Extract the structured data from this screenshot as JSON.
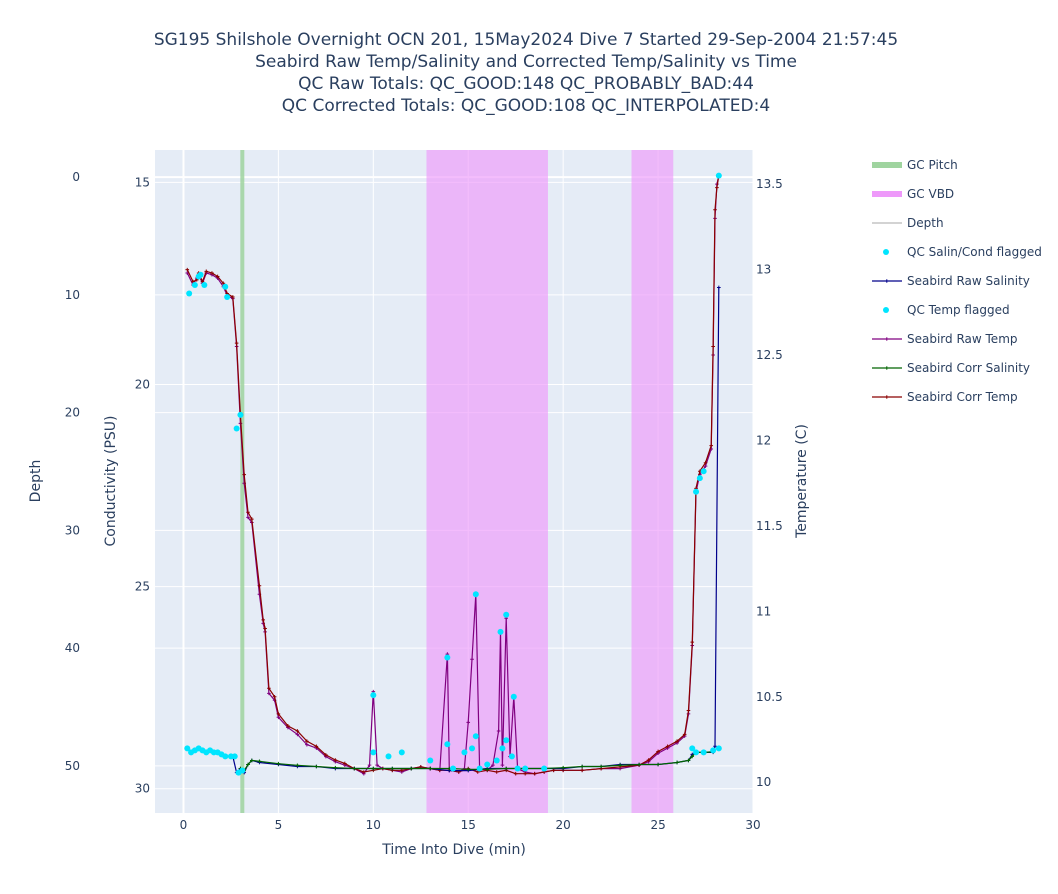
{
  "chart_data": {
    "type": "line",
    "title_lines": [
      "SG195 Shilshole Overnight OCN 201, 15May2024 Dive 7 Started 29-Sep-2004 21:57:45",
      "Seabird Raw Temp/Salinity and Corrected Temp/Salinity vs Time",
      "QC Raw Totals: QC_GOOD:148 QC_PROBABLY_BAD:44",
      "QC Corrected Totals: QC_GOOD:108 QC_INTERPOLATED:4"
    ],
    "xlabel": "Time Into Dive (min)",
    "y_depth_label": "Depth",
    "y_cond_label": "Conductivity (PSU)",
    "y_temp_label": "Temperature (C)",
    "xlim": [
      -1.5,
      30
    ],
    "x_ticks": [
      0,
      5,
      10,
      15,
      20,
      25,
      30
    ],
    "depth_axis": {
      "range": [
        54.0,
        -2.3
      ],
      "reversed": true,
      "ticks": [
        0,
        10,
        20,
        30,
        40,
        50
      ]
    },
    "cond_axis": {
      "range": [
        30.6,
        14.2
      ],
      "reversed": true,
      "ticks": [
        15,
        20,
        25,
        30
      ]
    },
    "temp_axis": {
      "range": [
        9.82,
        13.7
      ],
      "ticks": [
        10,
        10.5,
        11,
        11.5,
        12,
        12.5,
        13,
        13.5
      ]
    },
    "grid": true,
    "legend_position": "right",
    "colors": {
      "plot_bg": "#e5ecf6",
      "gc_pitch": "#9fd49f",
      "gc_vbd": "#ee99fa",
      "depth": "#d3d3d3",
      "qc_flagged": "#00e5ff",
      "raw_salinity": "#00008b",
      "raw_temp": "#800080",
      "corr_salinity": "#006400",
      "corr_temp": "#8b0000"
    },
    "gc_pitch": [
      3.1
    ],
    "gc_vbd": [
      [
        12.8,
        19.2
      ],
      [
        23.6,
        25.8
      ]
    ],
    "legend": [
      {
        "name": "GC Pitch",
        "kind": "band",
        "color_key": "gc_pitch"
      },
      {
        "name": "GC VBD",
        "kind": "band",
        "color_key": "gc_vbd"
      },
      {
        "name": "Depth",
        "kind": "line-faded",
        "color_key": "depth"
      },
      {
        "name": "QC Salin/Cond flagged",
        "kind": "dot",
        "color_key": "qc_flagged"
      },
      {
        "name": "Seabird Raw Salinity",
        "kind": "line",
        "color_key": "raw_salinity"
      },
      {
        "name": "QC Temp flagged",
        "kind": "dot",
        "color_key": "qc_flagged"
      },
      {
        "name": "Seabird Raw Temp",
        "kind": "line",
        "color_key": "raw_temp"
      },
      {
        "name": "Seabird Corr Salinity",
        "kind": "line",
        "color_key": "corr_salinity"
      },
      {
        "name": "Seabird Corr Temp",
        "kind": "line",
        "color_key": "corr_temp"
      }
    ],
    "series": [
      {
        "name": "Seabird Raw Temp",
        "axis": "temp",
        "color_key": "raw_temp",
        "points": [
          [
            0.2,
            12.98
          ],
          [
            0.5,
            12.91
          ],
          [
            0.7,
            12.95
          ],
          [
            0.8,
            12.97
          ],
          [
            1.0,
            12.92
          ],
          [
            1.2,
            12.98
          ],
          [
            1.5,
            12.97
          ],
          [
            1.8,
            12.95
          ],
          [
            2.1,
            12.9
          ],
          [
            2.3,
            12.85
          ],
          [
            2.6,
            12.83
          ],
          [
            2.8,
            12.55
          ],
          [
            3.0,
            12.1
          ],
          [
            3.2,
            11.75
          ],
          [
            3.4,
            11.55
          ],
          [
            3.6,
            11.52
          ],
          [
            4.0,
            11.1
          ],
          [
            4.2,
            10.93
          ],
          [
            4.3,
            10.88
          ],
          [
            4.5,
            10.52
          ],
          [
            4.8,
            10.48
          ],
          [
            5.0,
            10.38
          ],
          [
            5.5,
            10.32
          ],
          [
            6.0,
            10.28
          ],
          [
            6.5,
            10.22
          ],
          [
            7.0,
            10.2
          ],
          [
            7.5,
            10.15
          ],
          [
            8.0,
            10.12
          ],
          [
            8.5,
            10.1
          ],
          [
            9.0,
            10.08
          ],
          [
            9.5,
            10.05
          ],
          [
            9.8,
            10.1
          ],
          [
            10.0,
            10.53
          ],
          [
            10.2,
            10.1
          ],
          [
            10.5,
            10.08
          ],
          [
            11.0,
            10.07
          ],
          [
            11.5,
            10.06
          ],
          [
            12.0,
            10.08
          ],
          [
            12.5,
            10.09
          ],
          [
            13.0,
            10.08
          ],
          [
            13.5,
            10.07
          ],
          [
            13.9,
            10.75
          ],
          [
            14.0,
            10.07
          ],
          [
            14.5,
            10.06
          ],
          [
            14.8,
            10.08
          ],
          [
            15.0,
            10.35
          ],
          [
            15.2,
            10.72
          ],
          [
            15.4,
            11.1
          ],
          [
            15.6,
            10.08
          ],
          [
            16.0,
            10.07
          ],
          [
            16.3,
            10.1
          ],
          [
            16.6,
            10.3
          ],
          [
            16.7,
            10.88
          ],
          [
            16.8,
            10.1
          ],
          [
            17.0,
            10.96
          ],
          [
            17.2,
            10.15
          ],
          [
            17.4,
            10.5
          ],
          [
            17.6,
            10.08
          ],
          [
            18.0,
            10.06
          ],
          [
            18.5,
            10.05
          ],
          [
            19.0,
            10.06
          ],
          [
            19.5,
            10.07
          ],
          [
            20.0,
            10.07
          ],
          [
            21.0,
            10.07
          ],
          [
            22.0,
            10.08
          ],
          [
            23.0,
            10.08
          ],
          [
            24.0,
            10.1
          ],
          [
            24.5,
            10.12
          ],
          [
            25.0,
            10.17
          ],
          [
            25.5,
            10.2
          ],
          [
            26.0,
            10.23
          ],
          [
            26.4,
            10.27
          ],
          [
            26.6,
            10.4
          ],
          [
            26.8,
            10.8
          ],
          [
            27.0,
            11.7
          ],
          [
            27.2,
            11.8
          ],
          [
            27.5,
            11.85
          ],
          [
            27.8,
            11.95
          ],
          [
            27.9,
            12.5
          ],
          [
            28.0,
            13.3
          ],
          [
            28.1,
            13.5
          ],
          [
            28.2,
            13.55
          ]
        ]
      },
      {
        "name": "Seabird Corr Temp",
        "axis": "temp",
        "color_key": "corr_temp",
        "points": [
          [
            0.2,
            13.0
          ],
          [
            0.5,
            12.93
          ],
          [
            0.7,
            12.94
          ],
          [
            0.8,
            12.98
          ],
          [
            1.0,
            12.93
          ],
          [
            1.2,
            12.99
          ],
          [
            1.5,
            12.98
          ],
          [
            1.8,
            12.96
          ],
          [
            2.1,
            12.92
          ],
          [
            2.3,
            12.86
          ],
          [
            2.6,
            12.84
          ],
          [
            2.8,
            12.57
          ],
          [
            3.0,
            12.15
          ],
          [
            3.2,
            11.8
          ],
          [
            3.4,
            11.58
          ],
          [
            3.6,
            11.54
          ],
          [
            4.0,
            11.15
          ],
          [
            4.2,
            10.95
          ],
          [
            4.3,
            10.9
          ],
          [
            4.5,
            10.55
          ],
          [
            4.8,
            10.5
          ],
          [
            5.0,
            10.4
          ],
          [
            5.5,
            10.33
          ],
          [
            6.0,
            10.3
          ],
          [
            6.5,
            10.24
          ],
          [
            7.0,
            10.21
          ],
          [
            7.5,
            10.16
          ],
          [
            8.0,
            10.13
          ],
          [
            8.5,
            10.11
          ],
          [
            9.0,
            10.08
          ],
          [
            9.5,
            10.06
          ],
          [
            10.0,
            10.07
          ],
          [
            10.5,
            10.08
          ],
          [
            11.0,
            10.07
          ],
          [
            11.5,
            10.07
          ],
          [
            12.0,
            10.08
          ],
          [
            12.5,
            10.09
          ],
          [
            13.0,
            10.08
          ],
          [
            13.5,
            10.07
          ],
          [
            14.0,
            10.07
          ],
          [
            14.5,
            10.06
          ],
          [
            15.0,
            10.08
          ],
          [
            15.5,
            10.06
          ],
          [
            16.0,
            10.07
          ],
          [
            16.5,
            10.06
          ],
          [
            17.0,
            10.07
          ],
          [
            17.5,
            10.05
          ],
          [
            18.0,
            10.05
          ],
          [
            18.5,
            10.05
          ],
          [
            19.0,
            10.06
          ],
          [
            19.5,
            10.07
          ],
          [
            20.0,
            10.07
          ],
          [
            21.0,
            10.07
          ],
          [
            22.0,
            10.08
          ],
          [
            23.0,
            10.09
          ],
          [
            24.0,
            10.1
          ],
          [
            24.5,
            10.13
          ],
          [
            25.0,
            10.18
          ],
          [
            25.5,
            10.21
          ],
          [
            26.0,
            10.24
          ],
          [
            26.4,
            10.28
          ],
          [
            26.6,
            10.42
          ],
          [
            26.8,
            10.82
          ],
          [
            27.0,
            11.72
          ],
          [
            27.2,
            11.82
          ],
          [
            27.5,
            11.87
          ],
          [
            27.8,
            11.97
          ],
          [
            27.9,
            12.55
          ],
          [
            28.0,
            13.35
          ],
          [
            28.1,
            13.48
          ],
          [
            28.2,
            13.55
          ]
        ]
      },
      {
        "name": "Seabird Raw Salinity",
        "axis": "cond",
        "color_key": "raw_salinity",
        "points": [
          [
            0.2,
            29.0
          ],
          [
            0.4,
            29.1
          ],
          [
            0.6,
            29.05
          ],
          [
            0.8,
            29.0
          ],
          [
            1.0,
            29.05
          ],
          [
            1.2,
            29.1
          ],
          [
            1.4,
            29.05
          ],
          [
            1.6,
            29.1
          ],
          [
            1.8,
            29.1
          ],
          [
            2.0,
            29.15
          ],
          [
            2.3,
            29.2
          ],
          [
            2.6,
            29.2
          ],
          [
            2.8,
            29.6
          ],
          [
            3.0,
            29.5
          ],
          [
            3.2,
            29.6
          ],
          [
            3.4,
            29.4
          ],
          [
            3.6,
            29.3
          ],
          [
            4.0,
            29.35
          ],
          [
            5.0,
            29.4
          ],
          [
            6.0,
            29.45
          ],
          [
            7.0,
            29.45
          ],
          [
            8.0,
            29.5
          ],
          [
            9.0,
            29.5
          ],
          [
            10.0,
            29.5
          ],
          [
            11.0,
            29.5
          ],
          [
            12.0,
            29.5
          ],
          [
            13.0,
            29.5
          ],
          [
            14.0,
            29.55
          ],
          [
            15.0,
            29.55
          ],
          [
            16.0,
            29.5
          ],
          [
            17.0,
            29.5
          ],
          [
            18.0,
            29.5
          ],
          [
            19.0,
            29.5
          ],
          [
            20.0,
            29.5
          ],
          [
            21.0,
            29.45
          ],
          [
            22.0,
            29.45
          ],
          [
            23.0,
            29.4
          ],
          [
            24.0,
            29.4
          ],
          [
            25.0,
            29.4
          ],
          [
            26.0,
            29.35
          ],
          [
            26.6,
            29.3
          ],
          [
            26.8,
            29.15
          ],
          [
            27.0,
            29.1
          ],
          [
            27.5,
            29.1
          ],
          [
            27.9,
            29.1
          ],
          [
            28.0,
            28.95
          ],
          [
            28.2,
            17.6
          ]
        ]
      },
      {
        "name": "Seabird Corr Salinity",
        "axis": "cond",
        "color_key": "corr_salinity",
        "points": [
          [
            3.0,
            29.5
          ],
          [
            3.2,
            29.55
          ],
          [
            3.4,
            29.4
          ],
          [
            3.6,
            29.3
          ],
          [
            4.0,
            29.32
          ],
          [
            5.0,
            29.38
          ],
          [
            6.0,
            29.42
          ],
          [
            7.0,
            29.45
          ],
          [
            8.0,
            29.48
          ],
          [
            9.0,
            29.5
          ],
          [
            10.0,
            29.5
          ],
          [
            11.0,
            29.5
          ],
          [
            12.0,
            29.5
          ],
          [
            13.0,
            29.5
          ],
          [
            14.0,
            29.5
          ],
          [
            15.0,
            29.52
          ],
          [
            16.0,
            29.52
          ],
          [
            17.0,
            29.5
          ],
          [
            18.0,
            29.5
          ],
          [
            19.0,
            29.5
          ],
          [
            20.0,
            29.48
          ],
          [
            21.0,
            29.45
          ],
          [
            22.0,
            29.45
          ],
          [
            23.0,
            29.42
          ],
          [
            24.0,
            29.4
          ],
          [
            25.0,
            29.4
          ],
          [
            26.0,
            29.35
          ],
          [
            26.6,
            29.3
          ],
          [
            26.8,
            29.2
          ],
          [
            27.0,
            29.1
          ],
          [
            27.5,
            29.1
          ],
          [
            27.9,
            29.08
          ]
        ]
      }
    ],
    "qc_temp_flagged": [
      [
        0.3,
        12.86
      ],
      [
        0.6,
        12.91
      ],
      [
        0.8,
        12.96
      ],
      [
        0.9,
        12.97
      ],
      [
        1.1,
        12.91
      ],
      [
        2.2,
        12.9
      ],
      [
        2.3,
        12.84
      ],
      [
        2.8,
        12.07
      ],
      [
        3.0,
        12.15
      ],
      [
        10.0,
        10.51
      ],
      [
        13.9,
        10.73
      ],
      [
        15.4,
        11.1
      ],
      [
        16.7,
        10.88
      ],
      [
        17.0,
        10.98
      ],
      [
        17.4,
        10.5
      ],
      [
        27.0,
        11.7
      ],
      [
        27.2,
        11.78
      ],
      [
        27.4,
        11.82
      ],
      [
        28.2,
        13.55
      ]
    ],
    "qc_cond_flagged": [
      [
        0.2,
        29.0
      ],
      [
        0.4,
        29.1
      ],
      [
        0.6,
        29.05
      ],
      [
        0.8,
        29.0
      ],
      [
        1.0,
        29.05
      ],
      [
        1.2,
        29.1
      ],
      [
        1.4,
        29.05
      ],
      [
        1.6,
        29.1
      ],
      [
        1.8,
        29.1
      ],
      [
        2.0,
        29.15
      ],
      [
        2.2,
        29.2
      ],
      [
        2.5,
        29.2
      ],
      [
        2.7,
        29.2
      ],
      [
        2.9,
        29.6
      ],
      [
        3.1,
        29.55
      ],
      [
        10.0,
        29.1
      ],
      [
        10.8,
        29.2
      ],
      [
        11.5,
        29.1
      ],
      [
        13.0,
        29.3
      ],
      [
        13.9,
        28.9
      ],
      [
        14.2,
        29.5
      ],
      [
        14.8,
        29.1
      ],
      [
        15.2,
        29.0
      ],
      [
        15.4,
        28.7
      ],
      [
        15.6,
        29.5
      ],
      [
        16.0,
        29.4
      ],
      [
        16.5,
        29.3
      ],
      [
        16.8,
        29.0
      ],
      [
        17.0,
        28.8
      ],
      [
        17.3,
        29.2
      ],
      [
        17.6,
        29.5
      ],
      [
        18.0,
        29.5
      ],
      [
        19.0,
        29.5
      ],
      [
        26.8,
        29.0
      ],
      [
        27.0,
        29.1
      ],
      [
        27.4,
        29.1
      ],
      [
        27.9,
        29.05
      ],
      [
        28.2,
        29.0
      ]
    ]
  }
}
